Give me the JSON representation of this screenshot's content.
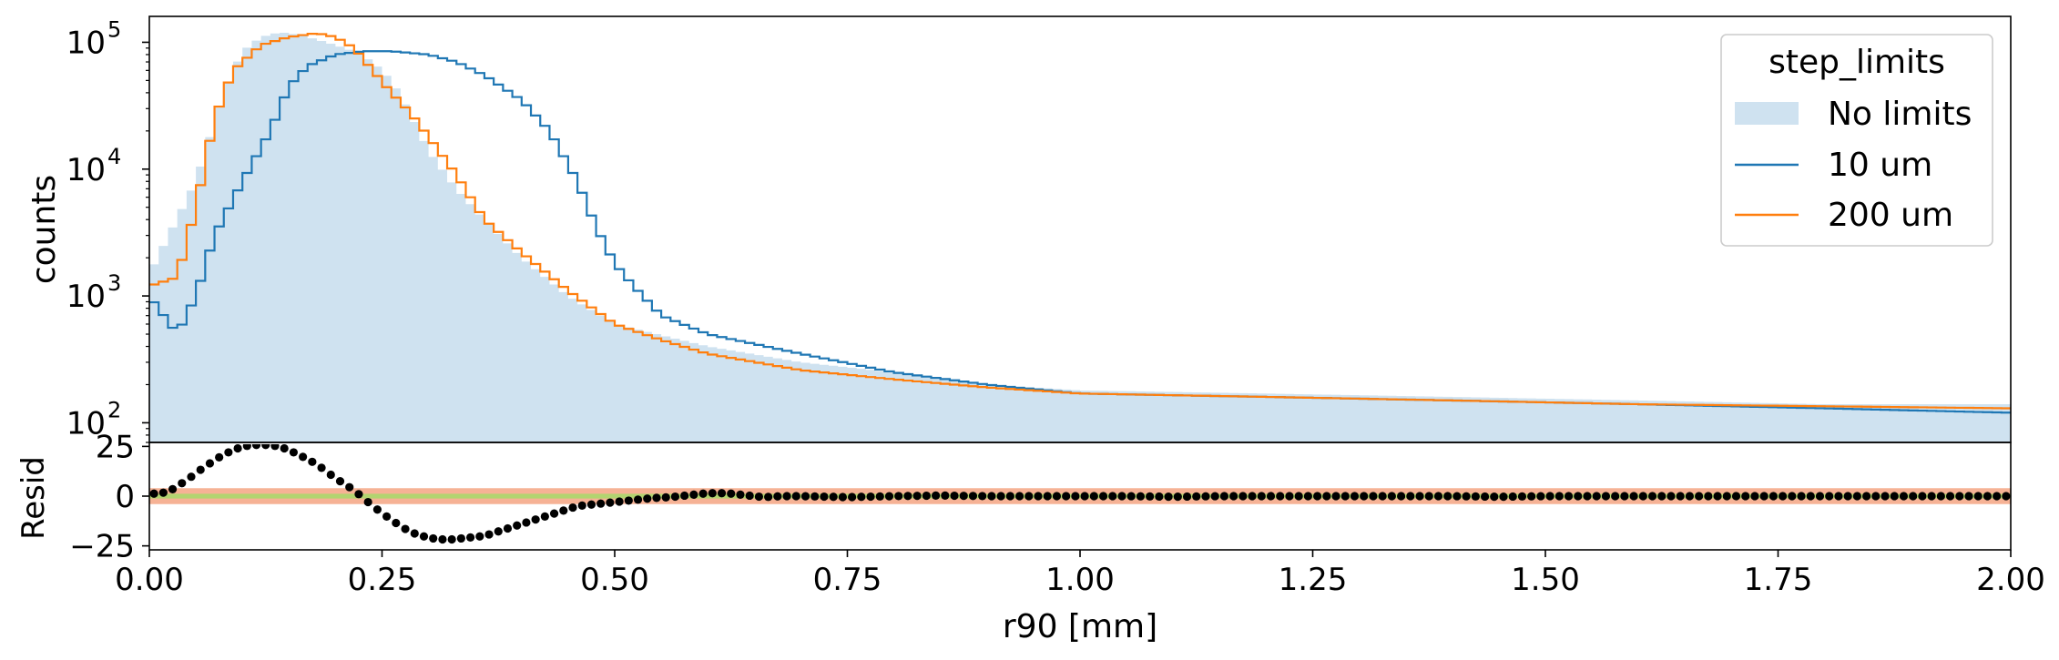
{
  "chart_data": [
    {
      "panel": "top",
      "type": "histogram",
      "title": "",
      "xlabel": "",
      "ylabel": "counts",
      "yscale": "log",
      "xlim": [
        0.0,
        2.0
      ],
      "ylim": [
        70,
        160000
      ],
      "ytick_labels": [
        "10",
        "10",
        "10",
        "10"
      ],
      "ytick_exponents": [
        "2",
        "3",
        "4",
        "5"
      ],
      "ytick_values": [
        100,
        1000,
        10000,
        100000
      ],
      "grid": false,
      "legend": {
        "title": "step_limits",
        "placement": "top-right",
        "entries": [
          "No limits",
          "10 um",
          "200 um"
        ]
      },
      "bin_edges": {
        "start": 0.0,
        "stop": 2.0,
        "count": 200
      },
      "series": [
        {
          "name": "No limits",
          "style": "filled",
          "color": "#cfe2f0",
          "x": [
            0.0,
            0.05,
            0.08,
            0.1,
            0.12,
            0.14,
            0.16,
            0.18,
            0.2,
            0.22,
            0.24,
            0.26,
            0.28,
            0.3,
            0.33,
            0.36,
            0.4,
            0.45,
            0.5,
            0.6,
            0.7,
            0.8,
            0.9,
            1.0,
            1.2,
            1.4,
            1.6,
            1.8,
            2.0
          ],
          "y": [
            1500,
            8000,
            40000,
            85000,
            110000,
            120000,
            115000,
            105000,
            95000,
            85000,
            70000,
            50000,
            28000,
            14000,
            7000,
            4000,
            2000,
            1000,
            600,
            400,
            300,
            250,
            200,
            180,
            170,
            160,
            150,
            140,
            140
          ]
        },
        {
          "name": "10 um",
          "style": "step",
          "color": "#1f77b4",
          "x": [
            0.0,
            0.03,
            0.05,
            0.07,
            0.1,
            0.13,
            0.15,
            0.17,
            0.2,
            0.23,
            0.26,
            0.3,
            0.33,
            0.36,
            0.4,
            0.43,
            0.46,
            0.48,
            0.5,
            0.52,
            0.55,
            0.6,
            0.7,
            0.8,
            0.9,
            1.0,
            1.2,
            1.4,
            1.6,
            1.8,
            2.0
          ],
          "y": [
            1000,
            500,
            1000,
            3000,
            8000,
            20000,
            45000,
            65000,
            80000,
            85000,
            85000,
            80000,
            70000,
            55000,
            35000,
            20000,
            8000,
            3500,
            1800,
            1200,
            700,
            500,
            350,
            250,
            200,
            170,
            160,
            150,
            140,
            130,
            120
          ]
        },
        {
          "name": "200 um",
          "style": "step",
          "color": "#ff7f0e",
          "x": [
            0.0,
            0.03,
            0.05,
            0.07,
            0.09,
            0.12,
            0.15,
            0.18,
            0.2,
            0.22,
            0.24,
            0.26,
            0.28,
            0.3,
            0.33,
            0.36,
            0.4,
            0.45,
            0.5,
            0.55,
            0.6,
            0.7,
            0.8,
            0.9,
            1.0,
            1.2,
            1.4,
            1.6,
            1.8,
            2.0
          ],
          "y": [
            1200,
            1400,
            5000,
            25000,
            60000,
            95000,
            110000,
            118000,
            110000,
            90000,
            60000,
            40000,
            28000,
            18000,
            9000,
            4000,
            2200,
            1100,
            600,
            450,
            350,
            260,
            220,
            190,
            170,
            160,
            150,
            140,
            135,
            130
          ]
        }
      ]
    },
    {
      "panel": "bottom",
      "type": "scatter",
      "title": "",
      "xlabel": "r90 [mm]",
      "ylabel": "Resid",
      "xlim": [
        0.0,
        2.0
      ],
      "ylim": [
        -27,
        27
      ],
      "xtick_labels": [
        "0.00",
        "0.25",
        "0.50",
        "0.75",
        "1.00",
        "1.25",
        "1.50",
        "1.75",
        "2.00"
      ],
      "xtick_values": [
        0.0,
        0.25,
        0.5,
        0.75,
        1.0,
        1.25,
        1.5,
        1.75,
        2.0
      ],
      "ytick_labels": [
        "25",
        "0",
        "−25"
      ],
      "ytick_values": [
        25,
        0,
        -25
      ],
      "grid": false,
      "bands": [
        {
          "color": "#f4a582",
          "y1": -4,
          "y2": 4
        },
        {
          "color": "#a6d96a",
          "y1": -1.2,
          "y2": 1.2
        }
      ],
      "series": [
        {
          "color": "#000000",
          "x": [
            0.0,
            0.02,
            0.04,
            0.06,
            0.08,
            0.1,
            0.12,
            0.14,
            0.16,
            0.18,
            0.2,
            0.22,
            0.24,
            0.26,
            0.28,
            0.3,
            0.32,
            0.34,
            0.36,
            0.38,
            0.4,
            0.42,
            0.44,
            0.46,
            0.48,
            0.5,
            0.52,
            0.54,
            0.56,
            0.58,
            0.6,
            0.62,
            0.64,
            0.66,
            0.68,
            0.7,
            0.75,
            0.8,
            0.85,
            0.9,
            0.95,
            1.0,
            1.05,
            1.1,
            1.15,
            1.2,
            1.25,
            1.3,
            1.35,
            1.4,
            1.45,
            1.5,
            1.55,
            1.6,
            1.65,
            1.7,
            1.75,
            1.8,
            1.85,
            1.9,
            1.95,
            2.0
          ],
          "y": [
            1,
            2,
            8,
            15,
            21,
            25,
            26,
            25,
            21,
            16,
            9,
            3,
            -5,
            -12,
            -18,
            -21,
            -22,
            -21,
            -20,
            -17,
            -14,
            -11,
            -8,
            -5,
            -4,
            -3,
            -2,
            -1,
            -0.5,
            0.5,
            1.5,
            1.5,
            0.5,
            -0.5,
            0,
            0,
            -0.5,
            0,
            0.3,
            0,
            0,
            0,
            0,
            -0.3,
            0,
            0,
            0,
            0,
            0,
            0,
            -0.3,
            0,
            0,
            0,
            0,
            0,
            0,
            0,
            0,
            0,
            0,
            0
          ]
        }
      ]
    }
  ]
}
